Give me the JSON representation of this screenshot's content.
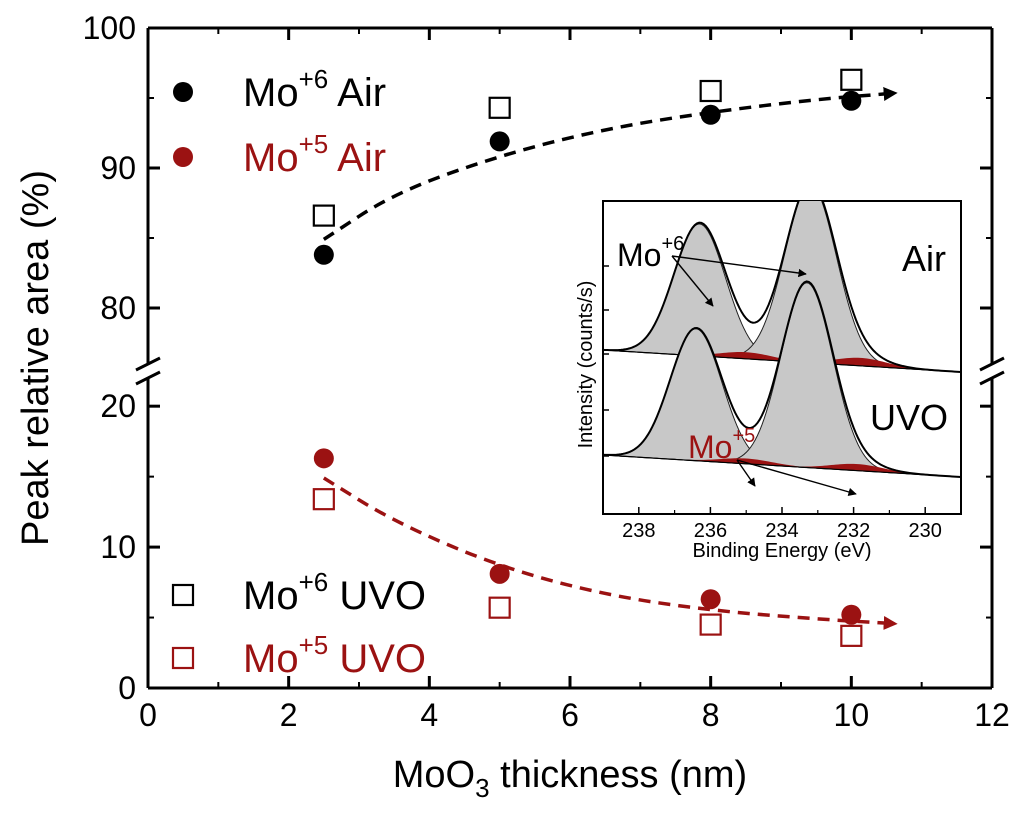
{
  "chart_data": {
    "type": "scatter",
    "xlabel": {
      "pre": "MoO",
      "sub": "3",
      "post": " thickness (nm)"
    },
    "ylabel": "Peak relative area (%)",
    "xlim": [
      0,
      12
    ],
    "x_ticks": [
      "0",
      "2",
      "4",
      "6",
      "8",
      "10",
      "12"
    ],
    "y_ticks_upper": [
      "80",
      "90",
      "100"
    ],
    "y_ticks_lower": [
      "0",
      "10",
      "20"
    ],
    "ylim_upper": [
      76,
      100
    ],
    "ylim_lower": [
      0,
      22
    ],
    "axis_break": true,
    "colors": {
      "black": "#000000",
      "red": "#9b1212",
      "fill": "#c8c8c8"
    },
    "series": [
      {
        "name": "Mo+6 Air",
        "label_base": "Mo",
        "label_sup": "+6",
        "label_rest": " Air",
        "marker": "filled-circle",
        "color": "#000000",
        "panel": "upper",
        "x": [
          2.5,
          5,
          8,
          10
        ],
        "y": [
          83.8,
          91.9,
          93.8,
          94.8
        ]
      },
      {
        "name": "Mo+5 Air",
        "label_base": "Mo",
        "label_sup": "+5",
        "label_rest": " Air",
        "marker": "filled-circle",
        "color": "#9b1212",
        "panel": "lower",
        "x": [
          2.5,
          5,
          8,
          10
        ],
        "y": [
          16.3,
          8.1,
          6.3,
          5.2
        ]
      },
      {
        "name": "Mo+6 UVO",
        "label_base": "Mo",
        "label_sup": "+6",
        "label_rest": " UVO",
        "marker": "open-square",
        "color": "#000000",
        "panel": "upper",
        "x": [
          2.5,
          5,
          8,
          10
        ],
        "y": [
          86.6,
          94.3,
          95.5,
          96.3
        ]
      },
      {
        "name": "Mo+5 UVO",
        "label_base": "Mo",
        "label_sup": "+5",
        "label_rest": " UVO",
        "marker": "open-square",
        "color": "#9b1212",
        "panel": "lower",
        "x": [
          2.5,
          5,
          8,
          10
        ],
        "y": [
          13.4,
          5.7,
          4.5,
          3.7
        ]
      }
    ],
    "trend_lines": [
      {
        "panel": "upper",
        "color": "#000000",
        "x": [
          2.5,
          3.5,
          5,
          6.5,
          8,
          9.5,
          10.5
        ],
        "y": [
          84.9,
          88.2,
          90.9,
          92.8,
          94.0,
          94.9,
          95.3
        ]
      },
      {
        "panel": "lower",
        "color": "#9b1212",
        "x": [
          2.5,
          3.5,
          5,
          6.5,
          8,
          9.5,
          10.5
        ],
        "y": [
          14.9,
          11.8,
          8.6,
          6.6,
          5.5,
          4.9,
          4.6
        ]
      }
    ],
    "inset": {
      "xlabel": "Binding Energy (eV)",
      "ylabel": "Intensity (counts/s)",
      "xlim": [
        239,
        229
      ],
      "x_ticks": [
        "238",
        "236",
        "234",
        "232",
        "230"
      ],
      "label_air": "Air",
      "label_uvo": "UVO",
      "ann_mo6": {
        "base": "Mo",
        "sup": "+6"
      },
      "ann_mo5": {
        "base": "Mo",
        "sup": "+5"
      },
      "spectra": [
        {
          "name": "Air",
          "mo6_peaks": [
            {
              "center": 236.3,
              "height": 1.0
            },
            {
              "center": 233.2,
              "height": 1.35
            }
          ],
          "mo5_peaks": [
            {
              "center": 235.0,
              "height": 0.05
            },
            {
              "center": 231.8,
              "height": 0.06
            }
          ]
        },
        {
          "name": "UVO",
          "mo6_peaks": [
            {
              "center": 236.4,
              "height": 1.0
            },
            {
              "center": 233.3,
              "height": 1.4
            }
          ],
          "mo5_peaks": [
            {
              "center": 235.0,
              "height": 0.04
            },
            {
              "center": 231.9,
              "height": 0.05
            }
          ]
        }
      ]
    }
  }
}
